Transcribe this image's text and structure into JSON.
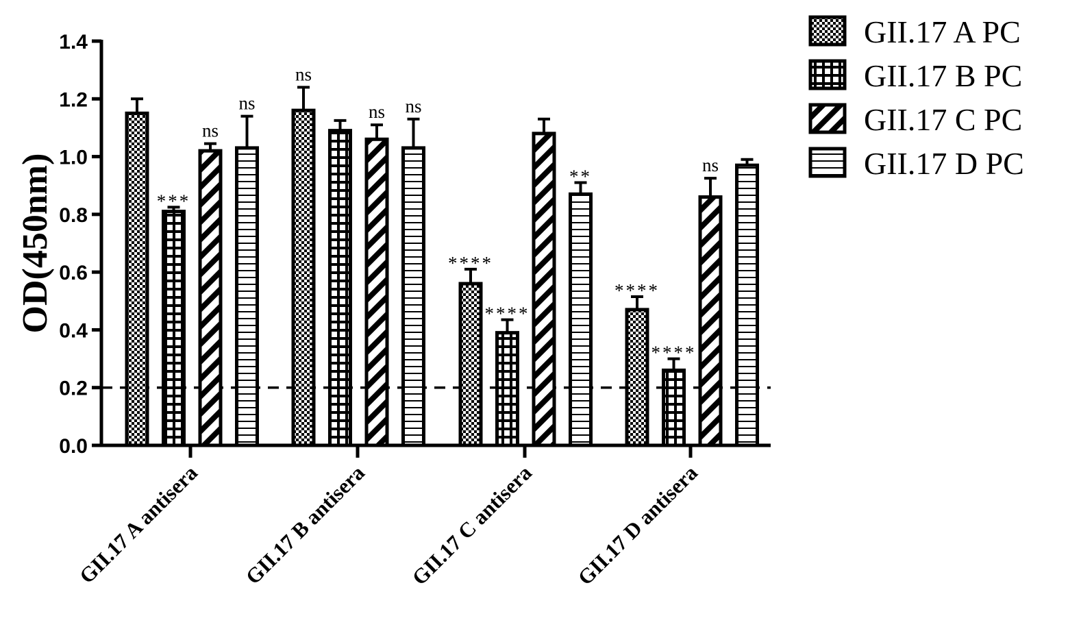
{
  "chart_data": {
    "type": "bar",
    "title": "",
    "xlabel": "",
    "ylabel": "OD(450nm)",
    "ylim": [
      0,
      1.4
    ],
    "yticks": [
      "0.0",
      "0.2",
      "0.4",
      "0.6",
      "0.8",
      "1.0",
      "1.2",
      "1.4"
    ],
    "categories": [
      "GII.17 A antisera",
      "GII.17 B antisera",
      "GII.17 C antisera",
      "GII.17 D antisera"
    ],
    "series": [
      {
        "name": "GII.17 A PC",
        "pattern": "checker",
        "values": [
          1.15,
          1.16,
          0.56,
          0.47
        ],
        "errors": [
          0.05,
          0.08,
          0.05,
          0.045
        ],
        "annotations": [
          "",
          "ns",
          "****",
          "****"
        ]
      },
      {
        "name": "GII.17 B PC",
        "pattern": "grid",
        "values": [
          0.81,
          1.09,
          0.39,
          0.26
        ],
        "errors": [
          0.015,
          0.035,
          0.045,
          0.04
        ],
        "annotations": [
          "***",
          "",
          "****",
          "****"
        ]
      },
      {
        "name": "GII.17 C PC",
        "pattern": "diagonal",
        "values": [
          1.02,
          1.06,
          1.08,
          0.86
        ],
        "errors": [
          0.025,
          0.05,
          0.05,
          0.065
        ],
        "annotations": [
          "ns",
          "ns",
          "",
          "ns"
        ]
      },
      {
        "name": "GII.17 D PC",
        "pattern": "horizontal",
        "values": [
          1.03,
          1.03,
          0.87,
          0.97
        ],
        "errors": [
          0.11,
          0.1,
          0.04,
          0.02
        ],
        "annotations": [
          "ns",
          "ns",
          "**",
          ""
        ]
      }
    ],
    "reference_line": {
      "y": 0.2,
      "style": "dashed"
    },
    "legend": {
      "position": "top-right"
    },
    "grid": false
  }
}
